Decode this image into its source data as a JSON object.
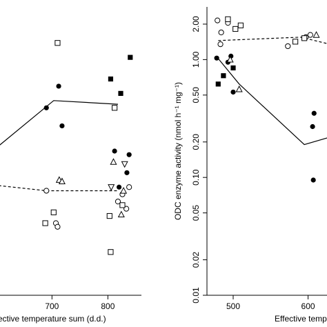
{
  "chart_data": [
    {
      "type": "scatter",
      "title": "",
      "xlabel": "Effective temperature sum (d.d.)",
      "ylabel": "",
      "xlim": [
        570,
        860
      ],
      "ylim": [
        0,
        4
      ],
      "x_ticks": [
        700,
        800
      ],
      "y_ticks": [],
      "grid": false,
      "marker_key": {
        "filled_circle": "●",
        "filled_square": "■",
        "open_circle": "○",
        "open_square": "□",
        "open_triangle_up": "△",
        "open_triangle_down": "▽"
      },
      "series": [
        {
          "marker": "filled_circle",
          "points": [
            [
              690,
              2.6
            ],
            [
              712,
              2.9
            ],
            [
              718,
              2.35
            ],
            [
              812,
              2.0
            ],
            [
              820,
              1.5
            ],
            [
              838,
              1.95
            ],
            [
              834,
              1.7
            ]
          ]
        },
        {
          "marker": "filled_square",
          "points": [
            [
              805,
              3.0
            ],
            [
              823,
              2.8
            ],
            [
              840,
              3.3
            ]
          ]
        },
        {
          "marker": "open_circle",
          "points": [
            [
              690,
              1.45
            ],
            [
              707,
              1.0
            ],
            [
              710,
              0.95
            ],
            [
              818,
              1.3
            ],
            [
              826,
              1.4
            ],
            [
              833,
              1.2
            ],
            [
              838,
              1.5
            ]
          ]
        },
        {
          "marker": "open_square",
          "points": [
            [
              710,
              3.5
            ],
            [
              703,
              1.15
            ],
            [
              688,
              1.0
            ],
            [
              803,
              1.1
            ],
            [
              805,
              0.6
            ],
            [
              812,
              2.6
            ],
            [
              826,
              1.25
            ]
          ]
        },
        {
          "marker": "open_triangle_up",
          "points": [
            [
              713,
              1.6
            ],
            [
              718,
              1.58
            ],
            [
              810,
              1.85
            ],
            [
              828,
              1.45
            ],
            [
              824,
              1.12
            ]
          ]
        },
        {
          "marker": "open_triangle_down",
          "points": [
            [
              806,
              1.5
            ],
            [
              830,
              1.82
            ]
          ]
        }
      ],
      "lines": [
        {
          "style": "solid",
          "points": [
            [
              570,
              1.85
            ],
            [
              703,
              2.7
            ],
            [
              818,
              2.65
            ]
          ]
        },
        {
          "style": "dashed",
          "points": [
            [
              570,
              1.55
            ],
            [
              690,
              1.45
            ],
            [
              818,
              1.45
            ]
          ]
        }
      ]
    },
    {
      "type": "scatter",
      "title": "",
      "xlabel": "Effective temperature sum (d.d.)",
      "ylabel": "ODC enzyme activity (nmol h⁻¹ mg⁻¹)",
      "xlim": [
        465,
        640
      ],
      "ylim": [
        0.01,
        2.8
      ],
      "y_scale": "log",
      "x_ticks": [
        500,
        600
      ],
      "y_ticks": [
        2.0,
        1.0,
        0.5,
        0.2,
        0.1,
        0.05,
        0.02,
        0.01
      ],
      "y_tick_labels": [
        "2.00",
        "1.00",
        "0.50",
        "0.20",
        "0.10",
        "0.05",
        "0.02",
        "0.01"
      ],
      "grid": false,
      "marker_key": {
        "filled_circle": "●",
        "filled_square": "■",
        "open_circle": "○",
        "open_square": "□",
        "open_triangle_up": "△",
        "open_triangle_down": "▽"
      },
      "series": [
        {
          "marker": "filled_circle",
          "points": [
            [
              478,
              1.03
            ],
            [
              497,
              1.07
            ],
            [
              500,
              0.53
            ],
            [
              608,
              0.35
            ],
            [
              606,
              0.27
            ],
            [
              607,
              0.095
            ],
            [
              493,
              0.95
            ]
          ]
        },
        {
          "marker": "filled_square",
          "points": [
            [
              480,
              0.62
            ],
            [
              487,
              0.73
            ],
            [
              500,
              0.85
            ]
          ]
        },
        {
          "marker": "open_circle",
          "points": [
            [
              479,
              2.15
            ],
            [
              483,
              1.35
            ],
            [
              484,
              1.7
            ],
            [
              493,
              2.05
            ],
            [
              573,
              1.3
            ],
            [
              597,
              1.55
            ],
            [
              603,
              1.62
            ]
          ]
        },
        {
          "marker": "open_square",
          "points": [
            [
              493,
              2.2
            ],
            [
              503,
              1.82
            ],
            [
              510,
              1.95
            ],
            [
              583,
              1.42
            ],
            [
              595,
              1.52
            ]
          ]
        },
        {
          "marker": "open_triangle_up",
          "points": [
            [
              496,
              1.0
            ],
            [
              508,
              0.56
            ],
            [
              611,
              1.62
            ]
          ]
        },
        {
          "marker": "open_triangle_down",
          "points": []
        }
      ],
      "lines": [
        {
          "style": "solid",
          "points": [
            [
              480,
              1.02
            ],
            [
              508,
              0.62
            ],
            [
              595,
              0.19
            ],
            [
              640,
              0.23
            ]
          ]
        },
        {
          "style": "dashed",
          "points": [
            [
              480,
              1.45
            ],
            [
              590,
              1.55
            ],
            [
              640,
              1.3
            ]
          ]
        }
      ]
    }
  ]
}
